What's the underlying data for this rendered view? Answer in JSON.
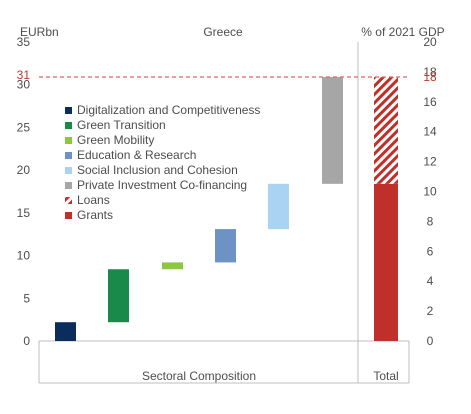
{
  "chart_data": {
    "type": "bar",
    "title": "Greece",
    "left_axis": {
      "unit_label": "EURbn",
      "ylim": [
        0,
        35
      ],
      "ticks": [
        0,
        5,
        10,
        15,
        20,
        25,
        30,
        35
      ]
    },
    "right_axis": {
      "unit_label": "% of 2021 GDP",
      "ylim": [
        0,
        20
      ],
      "ticks": [
        0,
        2,
        4,
        6,
        8,
        10,
        12,
        14,
        16,
        18,
        20
      ]
    },
    "reference_line": {
      "left_label": "31",
      "right_label": "18",
      "value": 30.9,
      "color": "#e06666"
    },
    "groups": [
      {
        "label": "Sectoral Composition"
      },
      {
        "label": "Total"
      }
    ],
    "waterfall": [
      {
        "name": "Digitalization and Competitiveness",
        "start": 0,
        "end": 2.2,
        "color": "#0b2d5b",
        "pattern": "solid"
      },
      {
        "name": "Green Transition",
        "start": 2.2,
        "end": 8.4,
        "color": "#1a8a4a",
        "pattern": "solid"
      },
      {
        "name": "Green Mobility",
        "start": 8.4,
        "end": 9.2,
        "color": "#8dc63f",
        "pattern": "solid"
      },
      {
        "name": "Education & Research",
        "start": 9.2,
        "end": 13.1,
        "color": "#6d93c4",
        "pattern": "solid"
      },
      {
        "name": "Social Inclusion and Cohesion",
        "start": 13.1,
        "end": 18.4,
        "color": "#a9d3f0",
        "pattern": "solid"
      },
      {
        "name": "Private Investment Co-financing",
        "start": 18.4,
        "end": 30.9,
        "color": "#a6a6a6",
        "pattern": "solid"
      }
    ],
    "total_stack": [
      {
        "name": "Grants",
        "start": 0,
        "end": 18.4,
        "color": "#c0302b",
        "pattern": "solid"
      },
      {
        "name": "Loans",
        "start": 18.4,
        "end": 30.9,
        "color": "#c0302b",
        "pattern": "hatched"
      }
    ],
    "legend": {
      "placement": "left",
      "items": [
        {
          "label": "Digitalization and Competitiveness",
          "color": "#0b2d5b",
          "pattern": "solid"
        },
        {
          "label": "Green Transition",
          "color": "#1a8a4a",
          "pattern": "solid"
        },
        {
          "label": "Green Mobility",
          "color": "#8dc63f",
          "pattern": "solid"
        },
        {
          "label": "Education & Research",
          "color": "#6d93c4",
          "pattern": "solid"
        },
        {
          "label": "Social Inclusion and Cohesion",
          "color": "#a9d3f0",
          "pattern": "solid"
        },
        {
          "label": "Private Investment Co-financing",
          "color": "#a6a6a6",
          "pattern": "solid"
        },
        {
          "label": "Loans",
          "color": "#c0302b",
          "pattern": "hatched"
        },
        {
          "label": "Grants",
          "color": "#c0302b",
          "pattern": "solid"
        }
      ]
    },
    "grid": false
  }
}
